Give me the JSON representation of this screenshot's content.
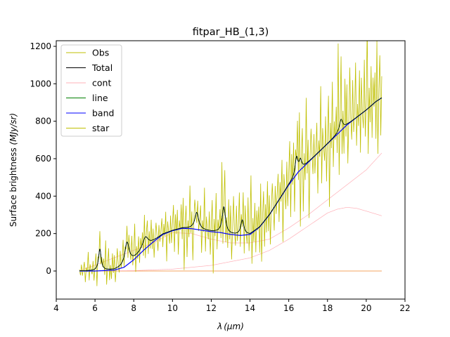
{
  "chart_data": {
    "type": "line",
    "title": "fitpar_HB_(1,3)",
    "xlabel_main": "λ",
    "xlabel_unit": "(μm)",
    "ylabel_main": "Surface brightness ",
    "ylabel_unit": "(MJy/sr)",
    "xlim": [
      4,
      22
    ],
    "ylim": [
      -150,
      1230
    ],
    "xticks": [
      4,
      6,
      8,
      10,
      12,
      14,
      16,
      18,
      20,
      22
    ],
    "yticks": [
      0,
      200,
      400,
      600,
      800,
      1000,
      1200
    ],
    "legend_position": "top-left",
    "colors": {
      "Obs": "#bfbf00",
      "Total": "#000000",
      "cont": "#ffb0b8",
      "line": "#008000",
      "band": "#0000ff",
      "star": "#bfbf00",
      "zero": "#f4a460"
    },
    "series": [
      {
        "name": "Obs",
        "key": "Obs"
      },
      {
        "name": "Total",
        "key": "Total"
      },
      {
        "name": "cont",
        "key": "cont"
      },
      {
        "name": "line",
        "key": "line"
      },
      {
        "name": "band",
        "key": "band"
      },
      {
        "name": "star",
        "key": "star"
      }
    ],
    "band_base": {
      "x": [
        5.2,
        6,
        7,
        7.5,
        8,
        8.5,
        9,
        9.5,
        10,
        10.5,
        11,
        11.5,
        12,
        12.5,
        13,
        13.5,
        14,
        14.5,
        15,
        15.5,
        16,
        16.5,
        17,
        17.5,
        18,
        18.5,
        19,
        19.5,
        20,
        20.5,
        20.8
      ],
      "y": [
        0,
        0,
        5,
        20,
        60,
        110,
        155,
        195,
        215,
        228,
        226,
        218,
        210,
        205,
        195,
        190,
        195,
        235,
        300,
        380,
        460,
        530,
        580,
        630,
        680,
        730,
        780,
        820,
        860,
        905,
        925
      ]
    },
    "peaks": [
      {
        "x": 6.25,
        "height": 115,
        "width": 0.08
      },
      {
        "x": 7.65,
        "height": 120,
        "width": 0.14
      },
      {
        "x": 8.6,
        "height": 60,
        "width": 0.18
      },
      {
        "x": 11.25,
        "height": 90,
        "width": 0.12
      },
      {
        "x": 12.65,
        "height": 140,
        "width": 0.1
      },
      {
        "x": 13.6,
        "height": 80,
        "width": 0.1
      },
      {
        "x": 16.4,
        "height": 90,
        "width": 0.08
      },
      {
        "x": 16.6,
        "height": 50,
        "width": 0.08
      }
    ],
    "green_line": {
      "x": 18.7,
      "height": 60,
      "width": 0.1
    },
    "cont_a": {
      "x": [
        5.2,
        8,
        10,
        12,
        14,
        15,
        16,
        17,
        18,
        18.5,
        19,
        19.5,
        20,
        20.8
      ],
      "y": [
        0,
        2,
        10,
        30,
        70,
        110,
        170,
        240,
        310,
        330,
        340,
        335,
        320,
        295
      ]
    },
    "cont_b": {
      "x": [
        5.2,
        9,
        10,
        11,
        12,
        13,
        14,
        15,
        16,
        17,
        18,
        19,
        20,
        20.8
      ],
      "y": [
        0,
        150,
        205,
        200,
        170,
        150,
        150,
        170,
        230,
        300,
        380,
        460,
        540,
        630
      ]
    },
    "obs_noise": [
      5,
      -30,
      40,
      -20,
      10,
      55,
      -45,
      20,
      -10,
      70,
      -60,
      35,
      0,
      -25,
      50,
      -40,
      15,
      80,
      -70,
      30,
      -15,
      60,
      -50,
      25,
      -5,
      45,
      -35,
      90,
      -80,
      10,
      65,
      -55,
      20,
      -30,
      75,
      -20,
      40,
      -65,
      5,
      55
    ],
    "obs_step": 0.05,
    "obs_scale_base": 40,
    "obs_scale_slope": 9
  }
}
